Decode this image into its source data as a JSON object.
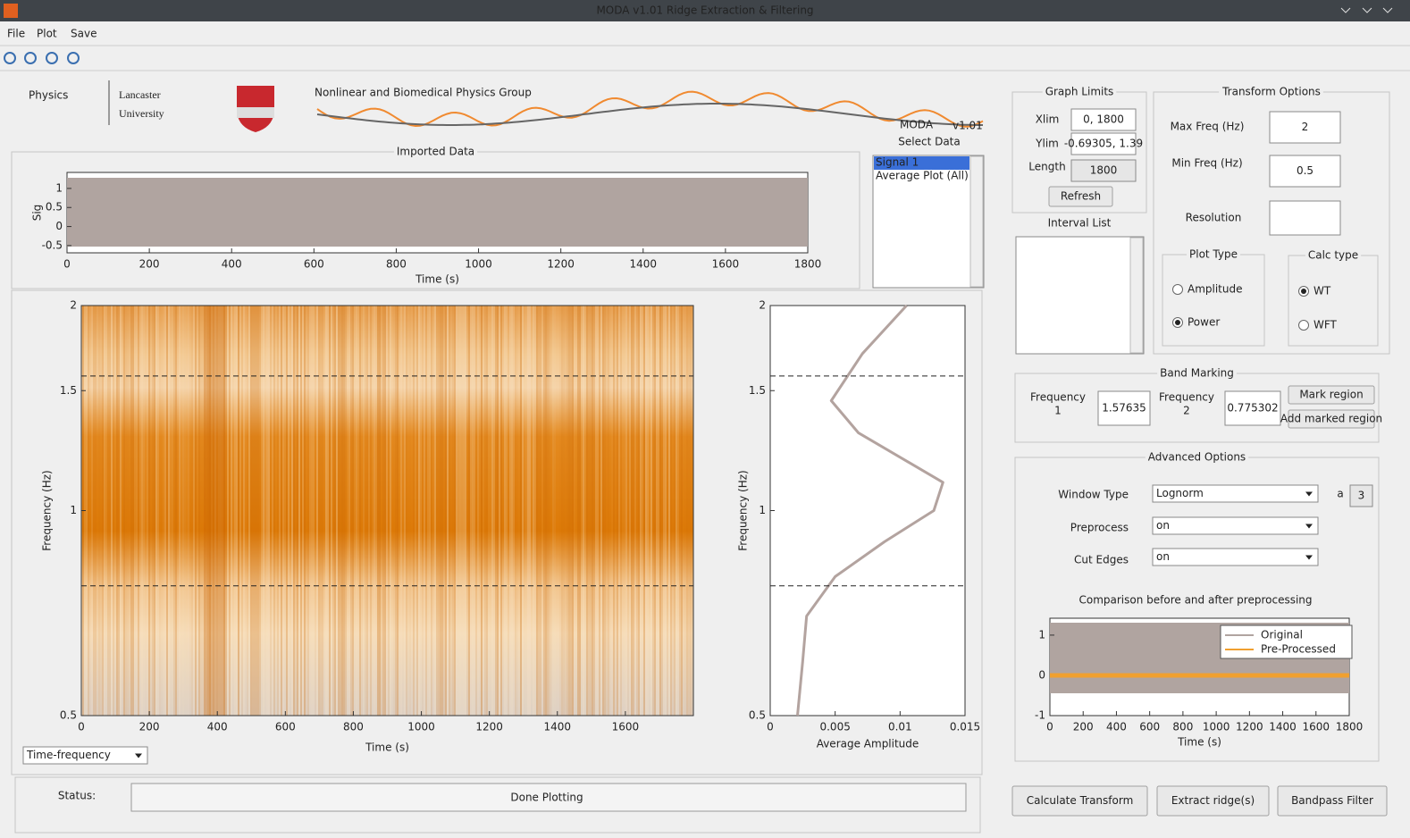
{
  "window": {
    "title": "MODA v1.01 Ridge Extraction & Filtering"
  },
  "menu": [
    "File",
    "Plot",
    "Save"
  ],
  "logo": {
    "physics": "Physics",
    "university_line1": "Lancaster",
    "university_line2": "University",
    "group": "Nonlinear and Biomedical Physics Group",
    "app": "MODA",
    "version": "v1.01"
  },
  "imported_data": {
    "title": "Imported Data",
    "ylabel": "Sig",
    "xlabel": "Time (s)",
    "xlim": [
      0,
      1800
    ],
    "xticks": [
      0,
      200,
      400,
      600,
      800,
      1000,
      1200,
      1400,
      1600,
      1800
    ],
    "ylim": [
      -0.69,
      1.42
    ],
    "yticks": [
      -0.5,
      0,
      0.5,
      1
    ]
  },
  "select_data": {
    "label": "Select Data",
    "items": [
      "Signal 1",
      "Average Plot (All)"
    ],
    "selected": 0
  },
  "graph_limits": {
    "title": "Graph Limits",
    "xlim_label": "Xlim",
    "xlim_value": "0, 1800",
    "ylim_label": "Ylim",
    "ylim_value": "-0.69305, 1.39",
    "length_label": "Length",
    "length_value": "1800",
    "refresh": "Refresh"
  },
  "interval_list": {
    "title": "Interval List"
  },
  "transform_options": {
    "title": "Transform Options",
    "max_freq_label": "Max Freq (Hz)",
    "max_freq": "2",
    "min_freq_label": "Min Freq (Hz)",
    "min_freq": "0.5",
    "resolution_label": "Resolution"
  },
  "plot_type": {
    "title": "Plot Type",
    "options": [
      "Amplitude",
      "Power"
    ],
    "selected": 1
  },
  "calc_type": {
    "title": "Calc type",
    "options": [
      "WT",
      "WFT"
    ],
    "selected": 0
  },
  "band_marking": {
    "title": "Band Marking",
    "freq1_label": [
      "Frequency",
      "1"
    ],
    "freq1": 1.57635,
    "freq2_label": [
      "Frequency",
      "2"
    ],
    "freq2": 0.775302,
    "mark": "Mark region",
    "add": "Add marked region"
  },
  "advanced": {
    "title": "Advanced Options",
    "window_type_label": "Window Type",
    "window_type": "Lognorm",
    "a_label": "a",
    "a": 3,
    "preprocess_label": "Preprocess",
    "preprocess": "on",
    "cut_edges_label": "Cut Edges",
    "cut_edges": "on",
    "comparison": {
      "title": "Comparison before and after preprocessing",
      "xlabel": "Time (s)",
      "xlim": [
        0,
        1800
      ],
      "xticks": [
        0,
        200,
        400,
        600,
        800,
        1000,
        1200,
        1400,
        1600,
        1800
      ],
      "ylim": [
        -1,
        1.42
      ],
      "yticks": [
        -1,
        0,
        1
      ],
      "legend": [
        "Original",
        "Pre-Processed"
      ],
      "colors": [
        "#b0a4a0",
        "#f0a030"
      ]
    }
  },
  "spectrum": {
    "xlabel": "Time (s)",
    "ylabel": "Frequency (Hz)",
    "xlim": [
      0,
      1800
    ],
    "xticks": [
      0,
      200,
      400,
      600,
      800,
      1000,
      1200,
      1400,
      1600
    ],
    "ylim": [
      0.5,
      2
    ],
    "yticks": [
      0.5,
      1,
      1.5,
      2
    ],
    "log_y": true
  },
  "average": {
    "xlabel": "Average Amplitude",
    "ylabel": "Frequency (Hz)",
    "xlim": [
      0,
      0.015
    ],
    "xticks": [
      0,
      0.005,
      0.01,
      0.015
    ],
    "ylim": [
      0.5,
      2
    ],
    "yticks": [
      0.5,
      1,
      1.5,
      2
    ],
    "log_y": true,
    "color": "#b3a39f",
    "frequency": [
      0.5,
      0.6,
      0.7,
      0.8,
      0.9,
      1.0,
      1.1,
      1.3,
      1.45,
      1.7,
      2
    ],
    "amplitude": [
      0.0021,
      0.0025,
      0.0028,
      0.005,
      0.0088,
      0.0126,
      0.0133,
      0.0068,
      0.0047,
      0.0071,
      0.0105
    ]
  },
  "plot_selector": "Time-frequency",
  "status": {
    "label": "Status:",
    "message": "Done Plotting"
  },
  "buttons": [
    "Calculate Transform",
    "Extract ridge(s)",
    "Bandpass Filter"
  ]
}
